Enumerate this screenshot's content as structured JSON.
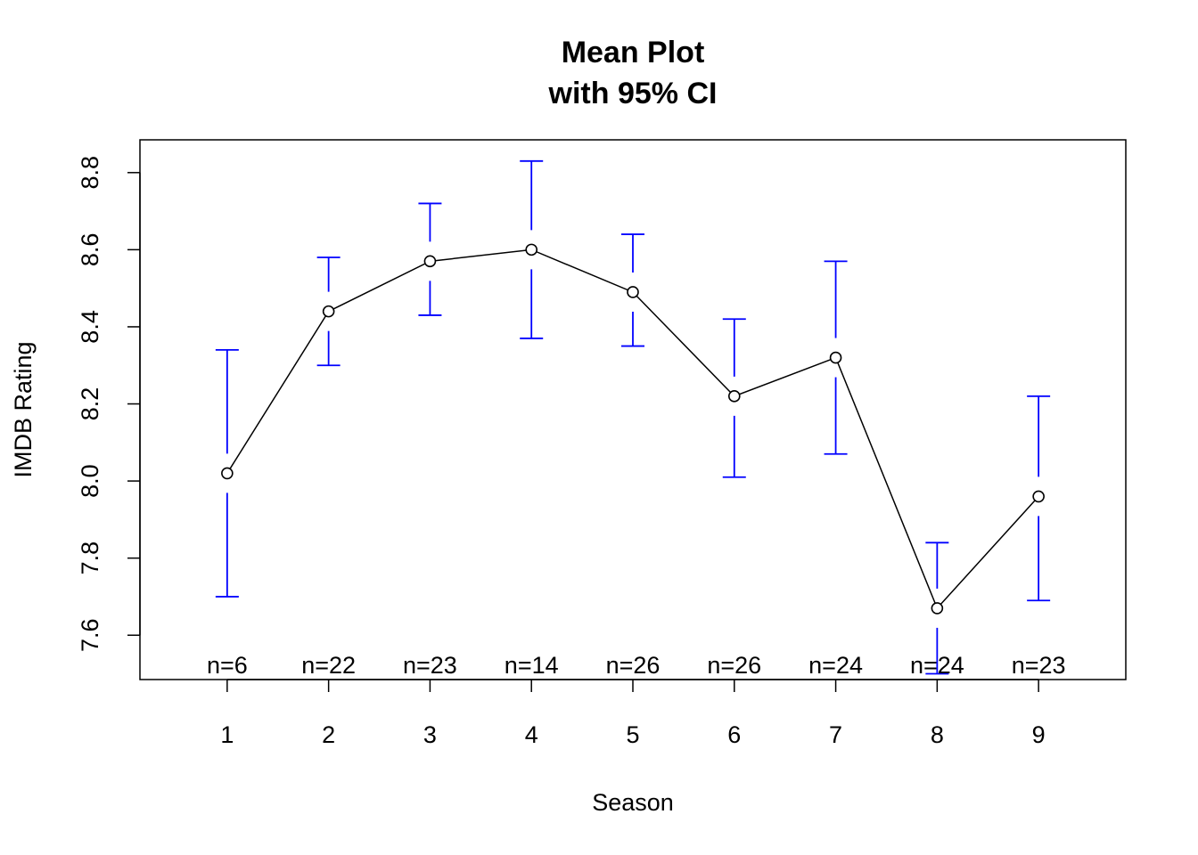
{
  "chart_data": {
    "type": "line",
    "title": "Mean Plot",
    "subtitle": "with 95% CI",
    "xlabel": "Season",
    "ylabel": "IMDB Rating",
    "x": [
      1,
      2,
      3,
      4,
      5,
      6,
      7,
      8,
      9
    ],
    "x_tick_labels": [
      "1",
      "2",
      "3",
      "4",
      "5",
      "6",
      "7",
      "8",
      "9"
    ],
    "y_ticks": [
      7.6,
      7.8,
      8.0,
      8.2,
      8.4,
      8.6,
      8.8
    ],
    "y_tick_labels": [
      "7.6",
      "7.8",
      "8.0",
      "8.2",
      "8.4",
      "8.6",
      "8.8"
    ],
    "xlim": [
      0.14,
      9.86
    ],
    "ylim": [
      7.485,
      8.885
    ],
    "grid": false,
    "series": [
      {
        "means": [
          8.02,
          8.44,
          8.57,
          8.6,
          8.49,
          8.22,
          8.32,
          7.67,
          7.96
        ],
        "ci_lower": [
          7.7,
          8.3,
          8.43,
          8.37,
          8.35,
          8.01,
          8.07,
          7.5,
          7.69
        ],
        "ci_upper": [
          8.34,
          8.58,
          8.72,
          8.83,
          8.64,
          8.42,
          8.57,
          7.84,
          8.22
        ],
        "n_labels": [
          "n=6",
          "n=22",
          "n=23",
          "n=14",
          "n=26",
          "n=26",
          "n=24",
          "n=24",
          "n=23"
        ]
      }
    ],
    "colors": {
      "line": "#000000",
      "ci": "#0000ff",
      "points": "#000000"
    }
  }
}
